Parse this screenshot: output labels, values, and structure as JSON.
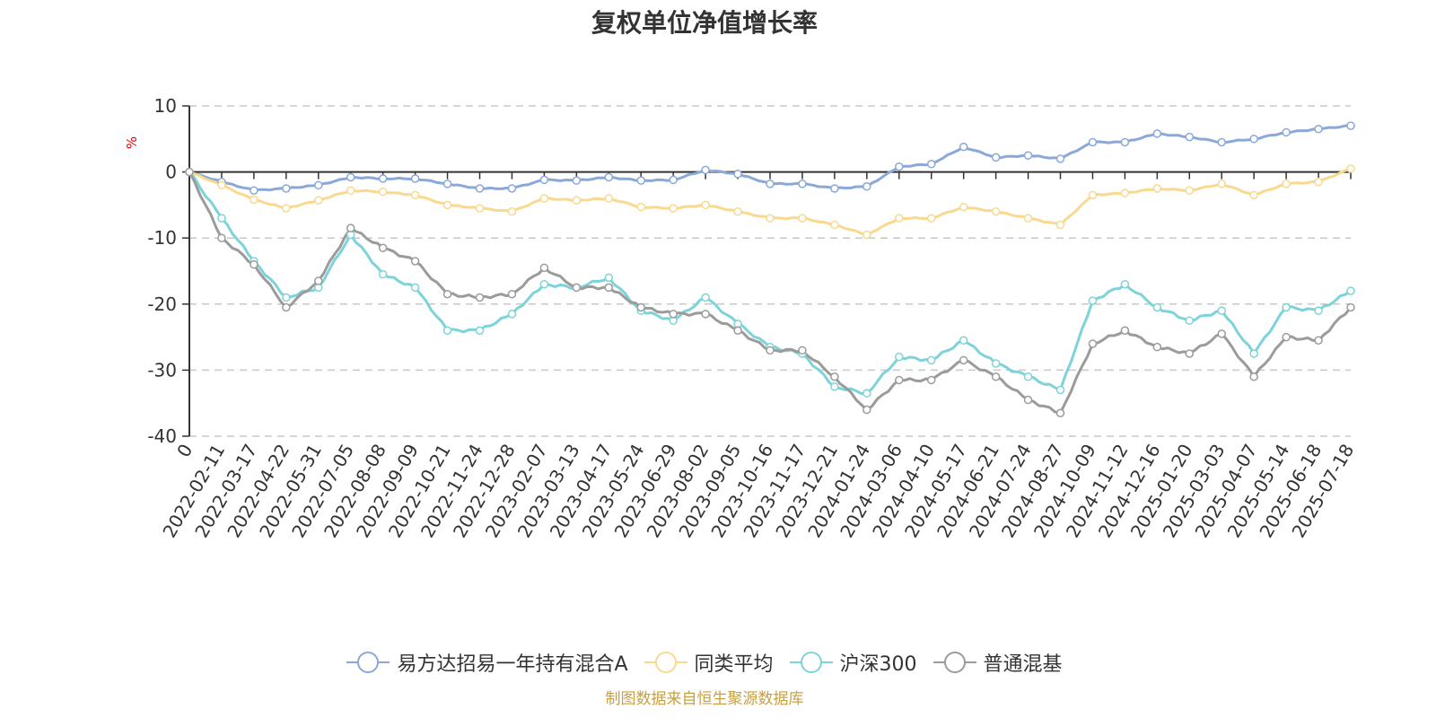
{
  "chart_data": {
    "type": "line",
    "title": "复权单位净值增长率",
    "ylabel": "%",
    "ylim": [
      -40,
      10
    ],
    "yticks": [
      10,
      0,
      -10,
      -20,
      -30,
      -40
    ],
    "grid": true,
    "legend_position": "bottom",
    "categories": [
      "0",
      "2022-02-11",
      "2022-03-17",
      "2022-04-22",
      "2022-05-31",
      "2022-07-05",
      "2022-08-08",
      "2022-09-09",
      "2022-10-21",
      "2022-11-24",
      "2022-12-28",
      "2023-02-07",
      "2023-03-13",
      "2023-04-17",
      "2023-05-24",
      "2023-06-29",
      "2023-08-02",
      "2023-09-05",
      "2023-10-16",
      "2023-11-17",
      "2023-12-21",
      "2024-01-24",
      "2024-03-06",
      "2024-04-10",
      "2024-05-17",
      "2024-06-21",
      "2024-07-24",
      "2024-08-27",
      "2024-10-09",
      "2024-11-12",
      "2024-12-16",
      "2025-01-20",
      "2025-03-03",
      "2025-04-07",
      "2025-05-14",
      "2025-06-18",
      "2025-07-18"
    ],
    "series": [
      {
        "name": "易方达招易一年持有混合A",
        "color": "#8aa8d8",
        "values": [
          0,
          -1.5,
          -2.8,
          -2.5,
          -2.0,
          -0.8,
          -1.0,
          -1.0,
          -1.8,
          -2.5,
          -2.5,
          -1.2,
          -1.3,
          -0.8,
          -1.3,
          -1.2,
          0.3,
          -0.3,
          -1.8,
          -1.8,
          -2.5,
          -2.2,
          0.8,
          1.2,
          3.8,
          2.2,
          2.5,
          2.0,
          4.5,
          4.5,
          5.8,
          5.3,
          4.5,
          5.0,
          6.0,
          6.5,
          7.0
        ]
      },
      {
        "name": "同类平均",
        "color": "#f9d98f",
        "values": [
          0,
          -2.0,
          -4.2,
          -5.5,
          -4.3,
          -2.8,
          -3.0,
          -3.5,
          -5.0,
          -5.5,
          -6.0,
          -4.0,
          -4.3,
          -4.0,
          -5.3,
          -5.5,
          -5.0,
          -6.0,
          -7.0,
          -7.0,
          -8.0,
          -9.5,
          -7.0,
          -7.0,
          -5.3,
          -6.0,
          -7.0,
          -8.0,
          -3.5,
          -3.2,
          -2.5,
          -2.8,
          -1.8,
          -3.5,
          -1.8,
          -1.5,
          0.5
        ]
      },
      {
        "name": "沪深300",
        "color": "#7dd3da",
        "values": [
          0,
          -7.0,
          -13.5,
          -19.0,
          -17.5,
          -9.5,
          -15.5,
          -17.5,
          -24.0,
          -24.0,
          -21.5,
          -17.0,
          -17.5,
          -16.0,
          -21.0,
          -22.5,
          -19.0,
          -23.0,
          -26.5,
          -27.5,
          -32.5,
          -33.5,
          -28.0,
          -28.5,
          -25.5,
          -29.0,
          -31.0,
          -33.0,
          -19.5,
          -17.0,
          -20.5,
          -22.5,
          -21.0,
          -27.5,
          -20.5,
          -21.0,
          -18.0
        ]
      },
      {
        "name": "普通混基",
        "color": "#9b9b9b",
        "values": [
          0,
          -10.0,
          -14.0,
          -20.5,
          -16.5,
          -8.5,
          -11.5,
          -13.5,
          -18.5,
          -19.0,
          -18.5,
          -14.5,
          -17.5,
          -17.5,
          -20.5,
          -21.5,
          -21.5,
          -24.0,
          -27.0,
          -27.0,
          -31.0,
          -36.0,
          -31.5,
          -31.5,
          -28.5,
          -31.0,
          -34.5,
          -36.5,
          -26.0,
          -24.0,
          -26.5,
          -27.5,
          -24.5,
          -31.0,
          -25.0,
          -25.5,
          -20.5
        ]
      }
    ]
  },
  "footer": {
    "source": "制图数据来自恒生聚源数据库"
  }
}
